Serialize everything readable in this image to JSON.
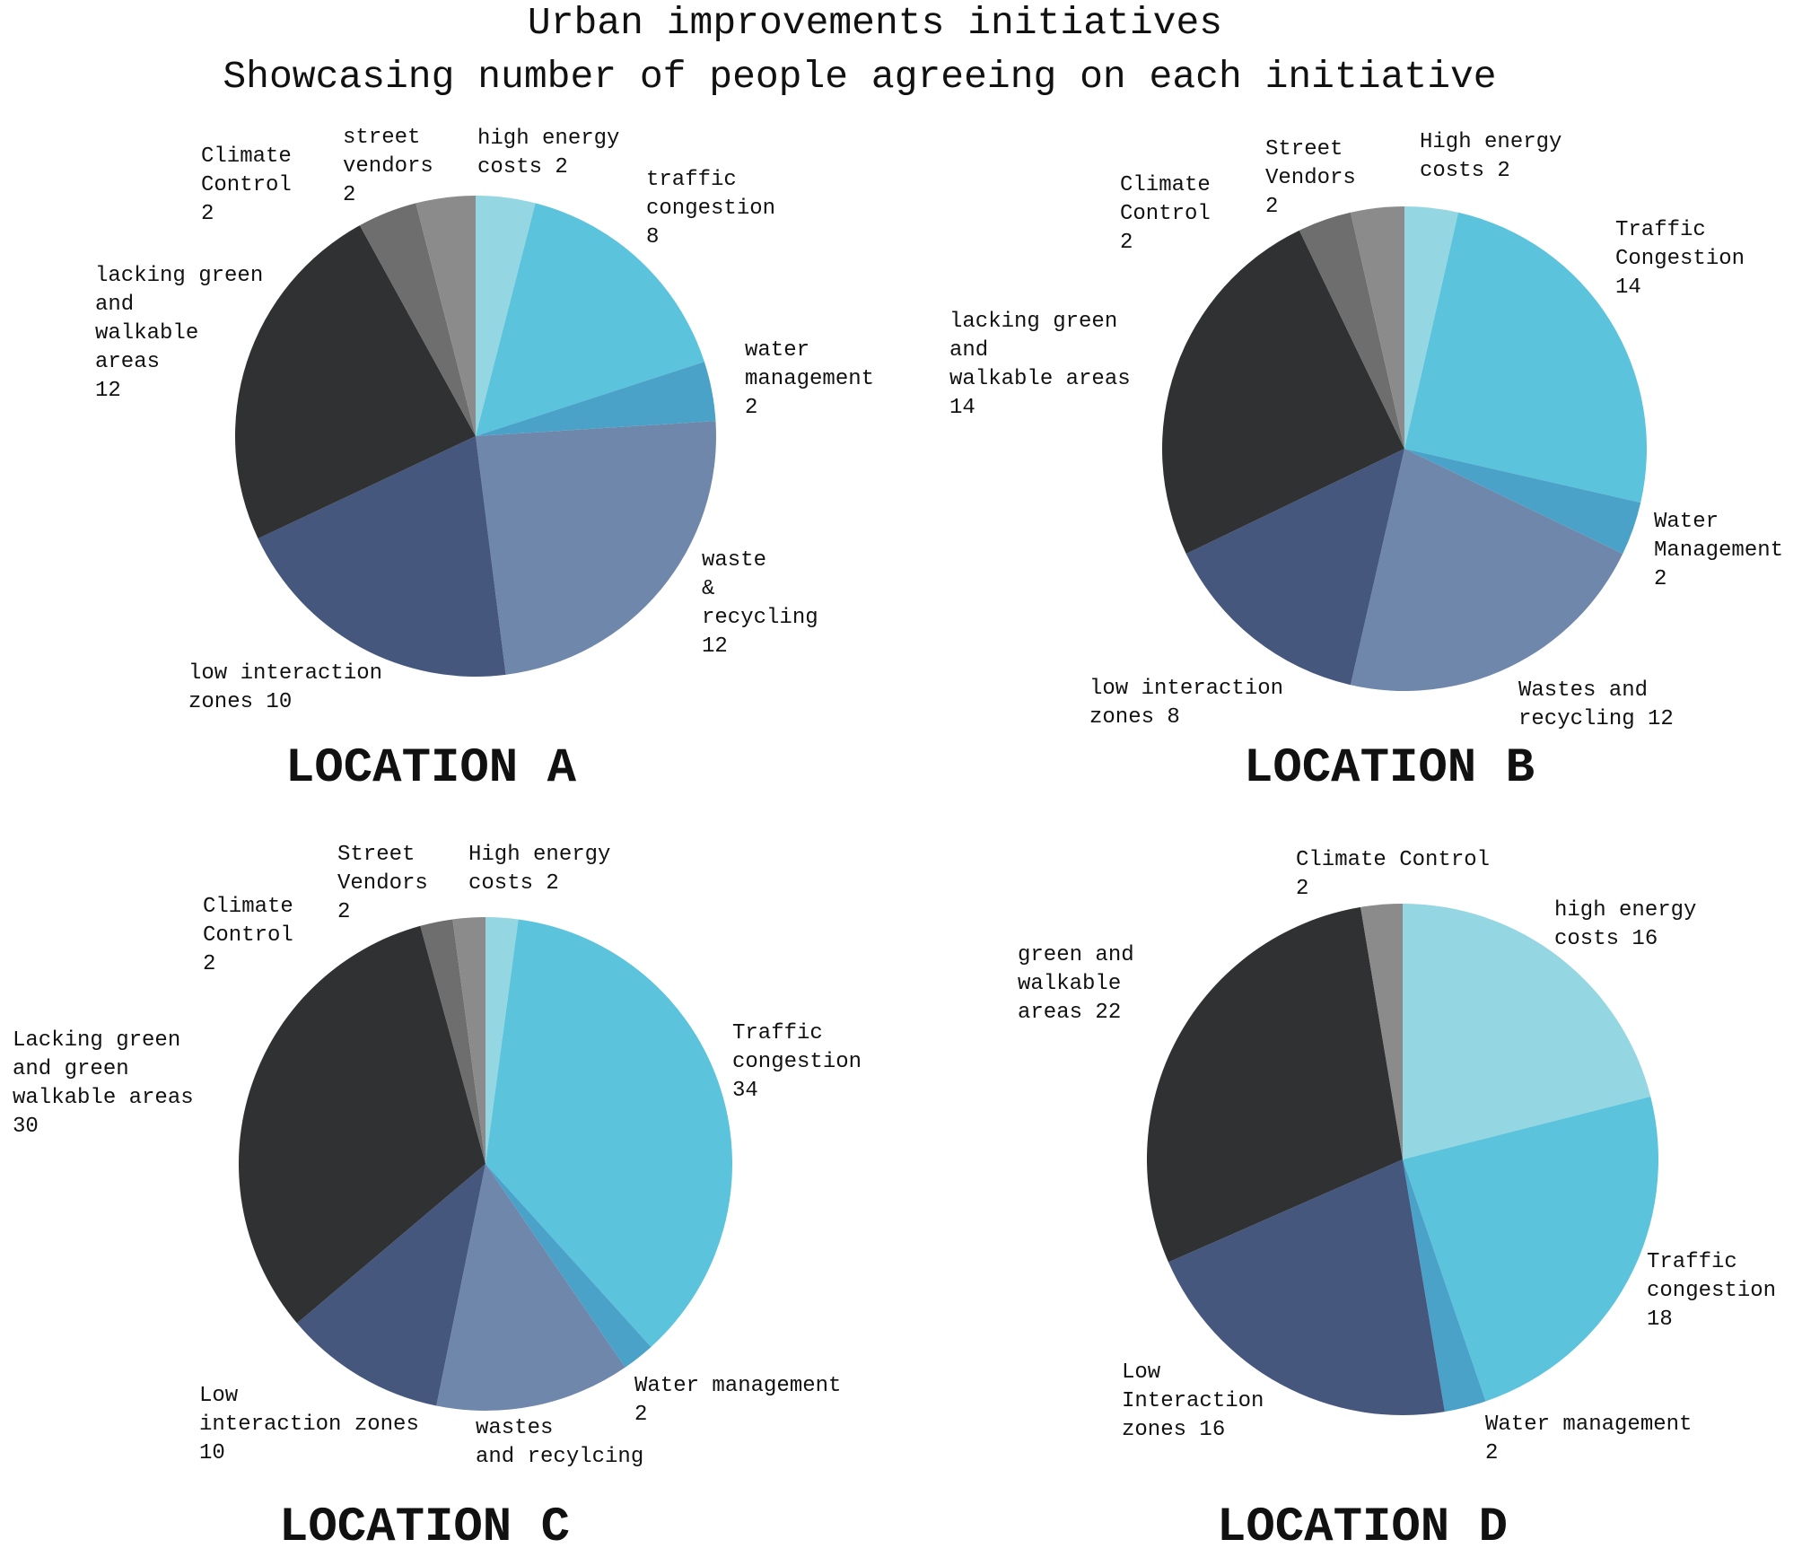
{
  "title_lines": [
    "Urban improvements initiatives",
    "Showcasing number of people agreeing on each initiative"
  ],
  "chart_data": [
    {
      "type": "pie",
      "title": "LOCATION A",
      "slices": [
        {
          "label": [
            "high energy",
            "costs 2"
          ],
          "value": 2,
          "color": "#94d6e1"
        },
        {
          "label": [
            "traffic",
            "congestion",
            "8"
          ],
          "value": 8,
          "color": "#5bc3dc"
        },
        {
          "label": [
            "water",
            "management",
            "2"
          ],
          "value": 2,
          "color": "#4aa2c9"
        },
        {
          "label": [
            "waste",
            "&",
            "recycling",
            "12"
          ],
          "value": 12,
          "color": "#6f87ab"
        },
        {
          "label": [
            "low interaction",
            "zones 10"
          ],
          "value": 10,
          "color": "#46577e"
        },
        {
          "label": [
            "lacking green",
            "and",
            "walkable",
            "areas",
            "12"
          ],
          "value": 12,
          "color": "#303133"
        },
        {
          "label": [
            "Climate",
            "Control",
            "2"
          ],
          "value": 2,
          "color": "#6e6e6e"
        },
        {
          "label": [
            "street",
            "vendors",
            "2"
          ],
          "value": 2,
          "color": "#8b8b8b"
        }
      ]
    },
    {
      "type": "pie",
      "title": "LOCATION B",
      "slices": [
        {
          "label": [
            "High energy",
            "costs 2"
          ],
          "value": 2,
          "color": "#94d6e1"
        },
        {
          "label": [
            "Traffic",
            "Congestion",
            "14"
          ],
          "value": 14,
          "color": "#5bc3dc"
        },
        {
          "label": [
            "Water",
            "Management",
            "2"
          ],
          "value": 2,
          "color": "#4aa2c9"
        },
        {
          "label": [
            "Wastes and",
            "recycling 12"
          ],
          "value": 12,
          "color": "#6f87ab"
        },
        {
          "label": [
            "low interaction",
            "zones 8"
          ],
          "value": 8,
          "color": "#46577e"
        },
        {
          "label": [
            "lacking green",
            "and",
            "walkable areas",
            "14"
          ],
          "value": 14,
          "color": "#303133"
        },
        {
          "label": [
            "Climate",
            "Control",
            "2"
          ],
          "value": 2,
          "color": "#6e6e6e"
        },
        {
          "label": [
            "Street",
            "Vendors",
            "2"
          ],
          "value": 2,
          "color": "#8b8b8b"
        }
      ]
    },
    {
      "type": "pie",
      "title": "LOCATION C",
      "slices": [
        {
          "label": [
            "High energy",
            "costs 2"
          ],
          "value": 2,
          "color": "#94d6e1"
        },
        {
          "label": [
            "Traffic",
            "congestion",
            "34"
          ],
          "value": 34,
          "color": "#5bc3dc"
        },
        {
          "label": [
            "Water management",
            "2"
          ],
          "value": 2,
          "color": "#4aa2c9"
        },
        {
          "label": [
            "wastes",
            "and recylcing"
          ],
          "value": 12,
          "color": "#6f87ab"
        },
        {
          "label": [
            "Low",
            "interaction zones",
            "10"
          ],
          "value": 10,
          "color": "#46577e"
        },
        {
          "label": [
            "Lacking green",
            "and green",
            "walkable areas",
            "30"
          ],
          "value": 30,
          "color": "#303133"
        },
        {
          "label": [
            "Climate",
            "Control",
            "2"
          ],
          "value": 2,
          "color": "#6e6e6e"
        },
        {
          "label": [
            "Street",
            "Vendors",
            "2"
          ],
          "value": 2,
          "color": "#8b8b8b"
        }
      ]
    },
    {
      "type": "pie",
      "title": "LOCATION D",
      "slices": [
        {
          "label": [
            "high energy",
            "costs 16"
          ],
          "value": 16,
          "color": "#94d6e1"
        },
        {
          "label": [
            "Traffic",
            "congestion",
            "18"
          ],
          "value": 18,
          "color": "#5bc3dc"
        },
        {
          "label": [
            "Water management",
            "2"
          ],
          "value": 2,
          "color": "#4aa2c9"
        },
        {
          "label": [
            "Low",
            "Interaction",
            "zones 16"
          ],
          "value": 16,
          "color": "#46577e"
        },
        {
          "label": [
            "green and",
            "walkable",
            "areas 22"
          ],
          "value": 22,
          "color": "#303133"
        },
        {
          "label": [
            "Climate Control",
            "2"
          ],
          "value": 2,
          "color": "#8b8b8b"
        }
      ]
    }
  ]
}
